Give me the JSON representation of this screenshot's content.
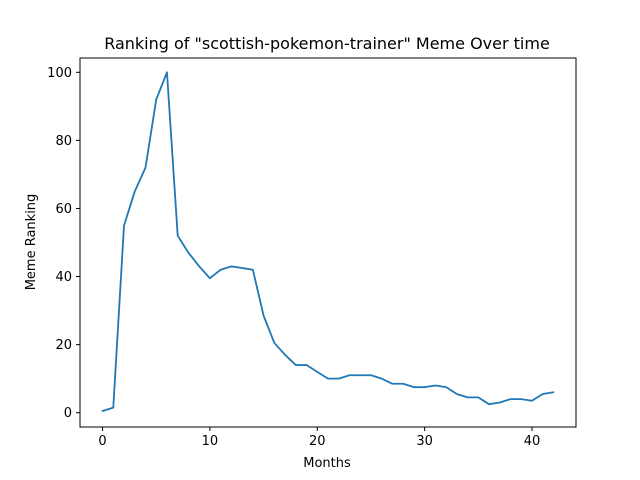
{
  "chart_data": {
    "type": "line",
    "title": "Ranking of \"scottish-pokemon-trainer\" Meme Over time",
    "xlabel": "Months",
    "ylabel": "Meme Ranking",
    "xlim": [
      -2.1,
      44.1
    ],
    "ylim": [
      -4.2,
      104.2
    ],
    "x_ticks": [
      0,
      10,
      20,
      30,
      40
    ],
    "y_ticks": [
      0,
      20,
      40,
      60,
      80,
      100
    ],
    "grid": false,
    "legend": "none",
    "series": [
      {
        "color": "#1f77b4",
        "x": [
          0,
          1,
          2,
          3,
          4,
          5,
          6,
          7,
          8,
          9,
          10,
          11,
          12,
          13,
          14,
          15,
          16,
          17,
          18,
          19,
          20,
          21,
          22,
          23,
          24,
          25,
          26,
          27,
          28,
          29,
          30,
          31,
          32,
          33,
          34,
          35,
          36,
          37,
          38,
          39,
          40,
          41,
          42
        ],
        "values": [
          0.5,
          1.5,
          55,
          65,
          72,
          92,
          100,
          52,
          47,
          43,
          39.5,
          42,
          43,
          42.5,
          42,
          28.5,
          20.5,
          17,
          14,
          14,
          12,
          10,
          10,
          11,
          11,
          11,
          10,
          8.5,
          8.5,
          7.5,
          7.5,
          8,
          7.5,
          5.5,
          4.5,
          4.5,
          2.5,
          3,
          4,
          4,
          3.5,
          5.5,
          6
        ]
      }
    ]
  }
}
